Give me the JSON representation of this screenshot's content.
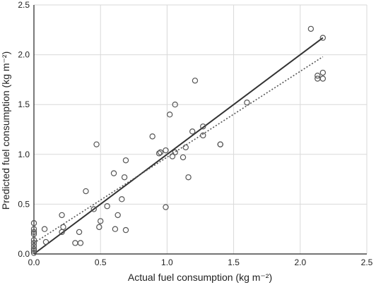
{
  "chart_data": {
    "type": "scatter",
    "xlabel": "Actual fuel consumption (kg m⁻²)",
    "ylabel": "Predicted fuel consumption (kg m⁻²)",
    "xlim": [
      0,
      2.5
    ],
    "ylim": [
      0,
      2.5
    ],
    "x_ticks": [
      "0.0",
      "0.5",
      "1.0",
      "1.5",
      "2.0",
      "2.5"
    ],
    "y_ticks": [
      "0.0",
      "0.5",
      "1.0",
      "1.5",
      "2.0",
      "2.5"
    ],
    "grid": true,
    "colors": {
      "points": "#555555",
      "grid": "#d9d9d9",
      "axis": "#222222",
      "solid_line": "#333333",
      "dotted_line": "#555555"
    },
    "points": [
      [
        0.0,
        0.01
      ],
      [
        0.0,
        0.03
      ],
      [
        0.0,
        0.05
      ],
      [
        0.0,
        0.08
      ],
      [
        0.0,
        0.11
      ],
      [
        0.0,
        0.14
      ],
      [
        0.0,
        0.2
      ],
      [
        0.0,
        0.22
      ],
      [
        0.0,
        0.25
      ],
      [
        0.0,
        0.31
      ],
      [
        0.08,
        0.25
      ],
      [
        0.09,
        0.12
      ],
      [
        0.21,
        0.22
      ],
      [
        0.21,
        0.39
      ],
      [
        0.22,
        0.27
      ],
      [
        0.31,
        0.11
      ],
      [
        0.34,
        0.22
      ],
      [
        0.35,
        0.11
      ],
      [
        0.39,
        0.63
      ],
      [
        0.45,
        0.45
      ],
      [
        0.47,
        1.1
      ],
      [
        0.49,
        0.27
      ],
      [
        0.5,
        0.33
      ],
      [
        0.55,
        0.48
      ],
      [
        0.6,
        0.81
      ],
      [
        0.61,
        0.25
      ],
      [
        0.63,
        0.39
      ],
      [
        0.66,
        0.55
      ],
      [
        0.68,
        0.77
      ],
      [
        0.69,
        0.94
      ],
      [
        0.69,
        0.24
      ],
      [
        0.89,
        1.18
      ],
      [
        0.94,
        1.01
      ],
      [
        0.95,
        1.02
      ],
      [
        0.99,
        1.04
      ],
      [
        0.99,
        0.47
      ],
      [
        1.02,
        1.4
      ],
      [
        1.04,
        0.98
      ],
      [
        1.06,
        1.5
      ],
      [
        1.06,
        1.02
      ],
      [
        1.12,
        0.97
      ],
      [
        1.14,
        1.07
      ],
      [
        1.16,
        0.77
      ],
      [
        1.19,
        1.23
      ],
      [
        1.21,
        1.74
      ],
      [
        1.27,
        1.19
      ],
      [
        1.27,
        1.28
      ],
      [
        1.4,
        1.1
      ],
      [
        1.4,
        1.1
      ],
      [
        1.6,
        1.52
      ],
      [
        2.08,
        2.26
      ],
      [
        2.13,
        1.79
      ],
      [
        2.13,
        1.76
      ],
      [
        2.17,
        1.82
      ],
      [
        2.17,
        1.76
      ],
      [
        2.17,
        2.17
      ]
    ],
    "lines": [
      {
        "style": "solid",
        "x": [
          0.0,
          2.17
        ],
        "y": [
          0.0,
          2.17
        ]
      },
      {
        "style": "dotted",
        "x": [
          0.0,
          2.17
        ],
        "y": [
          0.11,
          1.98
        ]
      }
    ]
  }
}
